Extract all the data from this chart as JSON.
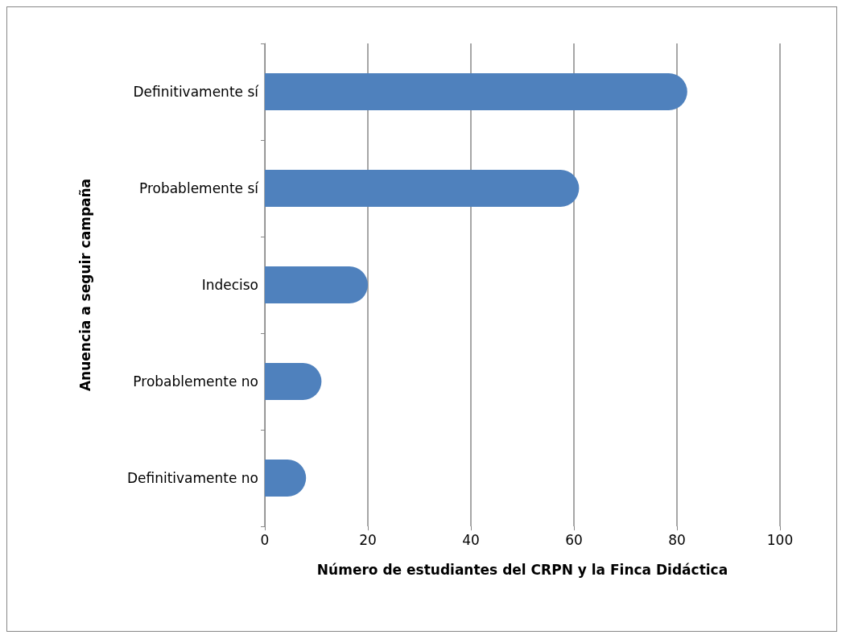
{
  "chart_data": {
    "type": "bar",
    "orientation": "horizontal",
    "ylabel": "Anuencia a seguir campaña",
    "xlabel": "Número de estudiantes del CRPN y la Finca Didáctica",
    "categories": [
      "Definitivamente sí",
      "Probablemente sí",
      "Indeciso",
      "Probablemente no",
      "Definitivamente no"
    ],
    "values": [
      82,
      61,
      20,
      11,
      8
    ],
    "color": "#4f81bd",
    "xlim": [
      0,
      100
    ],
    "xticks": [
      0,
      20,
      40,
      60,
      80,
      100
    ],
    "grid": "x"
  }
}
